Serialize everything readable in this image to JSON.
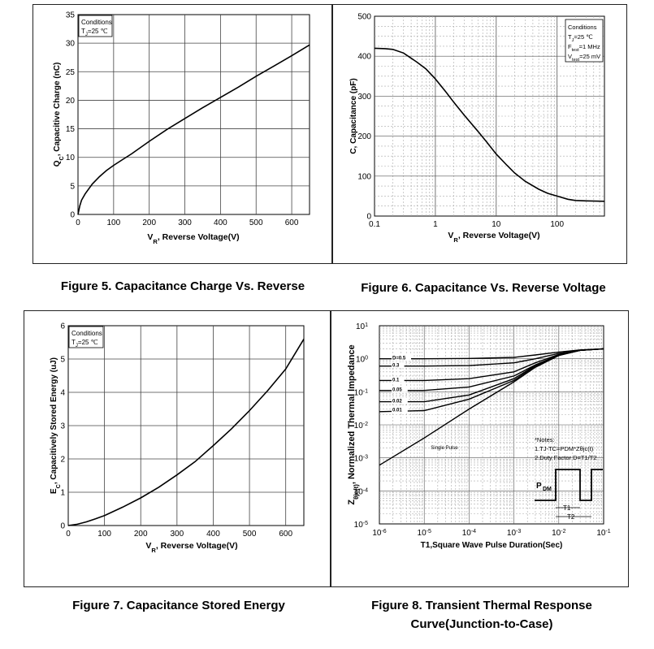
{
  "captions": {
    "fig5": "Figure 5. Capacitance Charge Vs. Reverse",
    "fig6": "Figure 6. Capacitance Vs. Reverse Voltage",
    "fig7": "Figure 7. Capacitance Stored Energy",
    "fig8_line1": "Figure 8. Transient Thermal Response",
    "fig8_line2": "Curve(Junction-to-Case)"
  },
  "chart_data": [
    {
      "id": "fig5",
      "type": "line",
      "title": "",
      "xlabel": "VR, Reverse Voltage(V)",
      "ylabel": "QC, Capacitive Charge (nC)",
      "xlim": [
        0,
        650
      ],
      "ylim": [
        0,
        35
      ],
      "xticks": [
        0,
        100,
        200,
        300,
        400,
        500,
        600
      ],
      "yticks": [
        0,
        5,
        10,
        15,
        20,
        25,
        30,
        35
      ],
      "grid": true,
      "conditions": [
        "Conditions",
        "TJ=25 ℃"
      ],
      "series": [
        {
          "x": [
            0,
            5,
            10,
            20,
            40,
            60,
            80,
            100,
            125,
            150,
            200,
            250,
            300,
            350,
            400,
            450,
            500,
            550,
            600,
            650
          ],
          "values": [
            0,
            1.5,
            2.5,
            3.6,
            5.3,
            6.6,
            7.7,
            8.6,
            9.6,
            10.6,
            12.8,
            14.9,
            16.8,
            18.7,
            20.5,
            22.3,
            24.2,
            26.0,
            27.8,
            29.7
          ]
        }
      ]
    },
    {
      "id": "fig6",
      "type": "line",
      "title": "",
      "xlabel": "VR, Reverse Voltage(V)",
      "ylabel": "C, Capacitance (pF)",
      "xscale": "log",
      "xlim": [
        0.1,
        600
      ],
      "ylim": [
        0,
        500
      ],
      "xticks": [
        "0.1",
        "1",
        "10",
        "100"
      ],
      "yticks": [
        0,
        100,
        200,
        300,
        400,
        500
      ],
      "grid": true,
      "conditions": [
        "Conditions",
        "TJ=25 ℃",
        "Ftest=1 MHz",
        "Vtest=25 mV"
      ],
      "series": [
        {
          "x": [
            0.1,
            0.15,
            0.2,
            0.3,
            0.5,
            0.7,
            1,
            1.5,
            2,
            3,
            5,
            7,
            10,
            15,
            20,
            30,
            50,
            70,
            100,
            150,
            200,
            300,
            600
          ],
          "values": [
            420,
            419,
            417,
            408,
            385,
            368,
            343,
            310,
            285,
            252,
            212,
            185,
            155,
            127,
            108,
            87,
            67,
            57,
            50,
            42,
            39,
            38,
            37
          ]
        }
      ]
    },
    {
      "id": "fig7",
      "type": "line",
      "title": "",
      "xlabel": "VR, Reverse Voltage(V)",
      "ylabel": "EC, Capacitively Stored Energy (uJ)",
      "xlim": [
        0,
        650
      ],
      "ylim": [
        0,
        6
      ],
      "xticks": [
        0,
        100,
        200,
        300,
        400,
        500,
        600
      ],
      "yticks": [
        0,
        1,
        2,
        3,
        4,
        5,
        6
      ],
      "grid": true,
      "conditions": [
        "Conditions",
        "TJ=25 ℃"
      ],
      "series": [
        {
          "x": [
            0,
            25,
            50,
            75,
            100,
            150,
            200,
            250,
            300,
            350,
            400,
            450,
            500,
            550,
            600,
            650
          ],
          "values": [
            0,
            0.04,
            0.11,
            0.2,
            0.3,
            0.55,
            0.83,
            1.15,
            1.52,
            1.92,
            2.4,
            2.9,
            3.45,
            4.05,
            4.7,
            5.6
          ]
        }
      ]
    },
    {
      "id": "fig8",
      "type": "line",
      "title": "",
      "xlabel": "T1,Square Wave Pulse Duration(Sec)",
      "ylabel": "Zθjc(t), Normalized Thermal Impedance",
      "xscale": "log",
      "yscale": "log",
      "xlim": [
        1e-06,
        0.1
      ],
      "ylim": [
        1e-05,
        10
      ],
      "xticks": [
        "10-6",
        "10-5",
        "10-4",
        "10-3",
        "10-2",
        "10-1"
      ],
      "yticks": [
        "10-5",
        "10-4",
        "10-3",
        "10-2",
        "10-1",
        "100",
        "101"
      ],
      "grid": true,
      "notes": [
        "*Notes:",
        "1.TJ-TC=PDM*Zθjc(t)",
        "2.Duty Factor D=T1/T2"
      ],
      "pulse_labels": {
        "pdm": "PDM",
        "t1": "T1",
        "t2": "T2"
      },
      "series": [
        {
          "name": "D=0.5",
          "x": [
            1e-06,
            1e-05,
            0.0001,
            0.001,
            0.003,
            0.01,
            0.03,
            0.1
          ],
          "values": [
            1.0,
            1.0,
            1.02,
            1.1,
            1.3,
            1.6,
            1.85,
            2.0
          ]
        },
        {
          "name": "0.3",
          "x": [
            1e-06,
            1e-05,
            0.0001,
            0.001,
            0.003,
            0.01,
            0.03,
            0.1
          ],
          "values": [
            0.6,
            0.6,
            0.62,
            0.75,
            1.0,
            1.45,
            1.8,
            2.0
          ]
        },
        {
          "name": "0.1",
          "x": [
            1e-06,
            1e-05,
            0.0001,
            0.001,
            0.003,
            0.01,
            0.03,
            0.1
          ],
          "values": [
            0.22,
            0.22,
            0.25,
            0.4,
            0.75,
            1.35,
            1.8,
            2.0
          ]
        },
        {
          "name": "0.05",
          "x": [
            1e-06,
            1e-05,
            0.0001,
            0.001,
            0.003,
            0.01,
            0.03,
            0.1
          ],
          "values": [
            0.11,
            0.11,
            0.14,
            0.3,
            0.65,
            1.3,
            1.8,
            2.0
          ]
        },
        {
          "name": "0.02",
          "x": [
            1e-06,
            1e-05,
            0.0001,
            0.001,
            0.003,
            0.01,
            0.03,
            0.1
          ],
          "values": [
            0.05,
            0.05,
            0.08,
            0.25,
            0.62,
            1.28,
            1.8,
            2.0
          ]
        },
        {
          "name": "0.01",
          "x": [
            1e-06,
            1e-05,
            0.0001,
            0.001,
            0.003,
            0.01,
            0.03,
            0.1
          ],
          "values": [
            0.025,
            0.027,
            0.06,
            0.22,
            0.6,
            1.27,
            1.8,
            2.0
          ]
        },
        {
          "name": "Single Pulse",
          "x": [
            1e-06,
            1e-05,
            0.0001,
            0.001,
            0.003,
            0.01,
            0.03,
            0.1
          ],
          "values": [
            0.0006,
            0.004,
            0.03,
            0.2,
            0.55,
            1.25,
            1.8,
            2.0
          ]
        }
      ]
    }
  ]
}
